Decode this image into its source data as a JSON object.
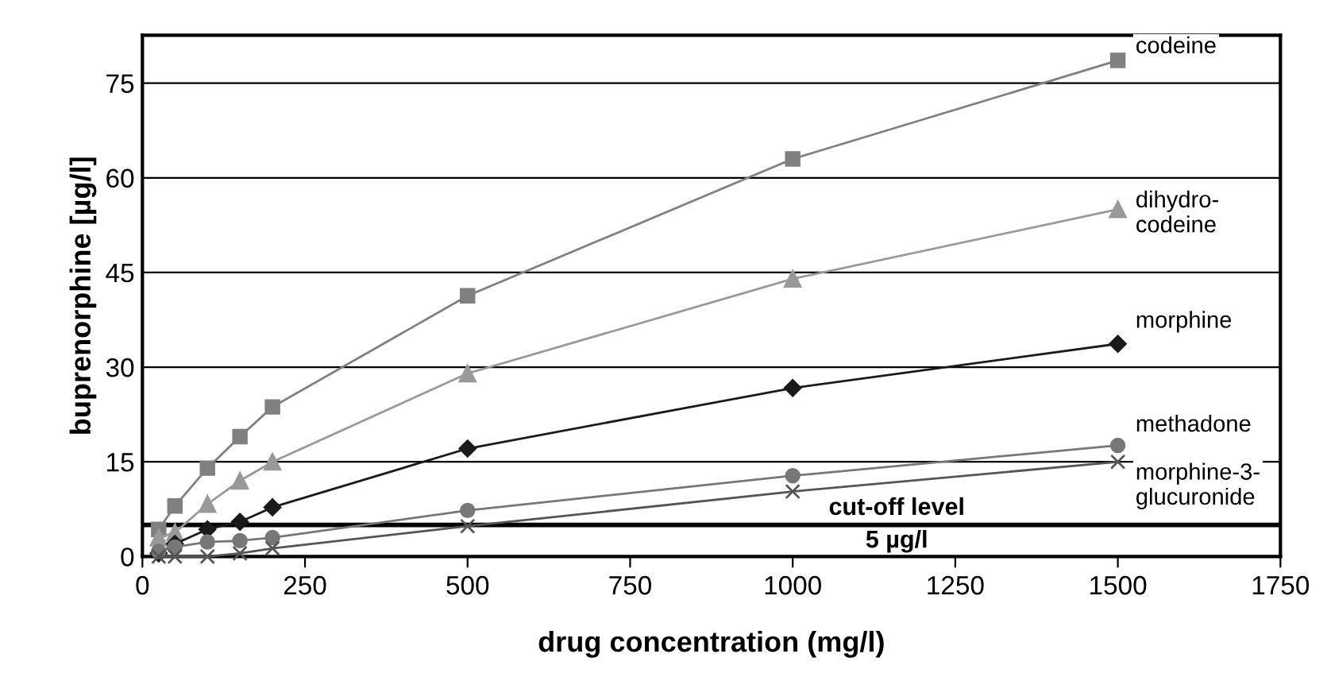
{
  "chart_data": {
    "type": "line",
    "xlabel": "drug concentration (mg/l)",
    "ylabel": "buprenorphine [µg/l]",
    "x": [
      25,
      50,
      100,
      150,
      200,
      500,
      1000,
      1500
    ],
    "series": [
      {
        "name": "codeine",
        "color": "#808080",
        "marker": "square",
        "values": [
          4.3,
          8,
          14,
          19,
          23.7,
          41.3,
          63,
          78.6
        ]
      },
      {
        "name": "dihydro-\ncodeine",
        "color": "#999999",
        "marker": "triangle",
        "values": [
          3,
          3.8,
          8.3,
          12,
          15,
          29,
          44,
          55
        ]
      },
      {
        "name": "morphine",
        "color": "#1a1a1a",
        "marker": "diamond",
        "values": [
          0.5,
          2,
          4.3,
          5.5,
          7.8,
          17.1,
          26.7,
          33.7
        ]
      },
      {
        "name": "methadone",
        "color": "#777777",
        "marker": "circle",
        "values": [
          0.8,
          1.5,
          2.3,
          2.5,
          3,
          7.3,
          12.8,
          17.6
        ]
      },
      {
        "name": "morphine-3-\nglucuronide",
        "color": "#555555",
        "marker": "cross",
        "values": [
          0,
          0,
          0,
          0.5,
          1.3,
          4.8,
          10.3,
          15
        ]
      }
    ],
    "ref_lines": [
      {
        "axis": "y",
        "value": 5,
        "label": "cut-off level",
        "color": "#000000"
      }
    ],
    "annotations": [
      "5 µg/l"
    ],
    "xlim": [
      0,
      1750
    ],
    "xticks": [
      0,
      250,
      500,
      750,
      1000,
      1250,
      1500,
      1750
    ],
    "ylim": [
      0,
      82.6
    ],
    "yticks": [
      0,
      15,
      30,
      45,
      60,
      75
    ],
    "grid": "y",
    "legend": false
  }
}
